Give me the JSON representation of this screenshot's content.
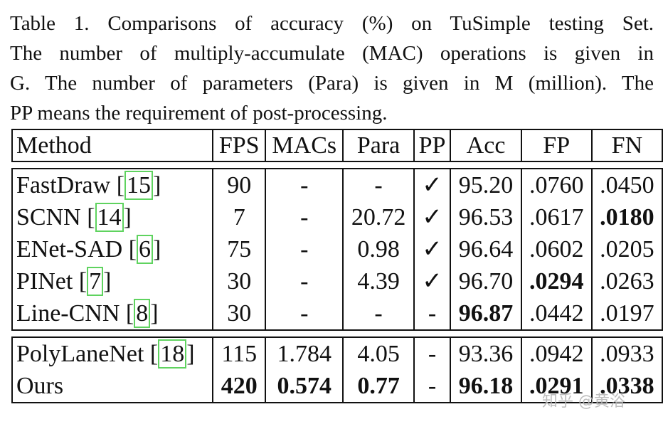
{
  "caption": {
    "lines": [
      "Table 1. Comparisons of accuracy (%) on TuSimple testing Set.",
      "The number of multiply-accumulate (MAC) operations is given in",
      "G. The number of parameters (Para) is given in M (million). The",
      "PP means the requirement of post-processing."
    ]
  },
  "table": {
    "headers": [
      "Method",
      "FPS",
      "MACs",
      "Para",
      "PP",
      "Acc",
      "FP",
      "FN"
    ],
    "group1": [
      {
        "method": "FastDraw [",
        "ref": "15",
        "close": "]",
        "fps": "90",
        "macs": "-",
        "para": "-",
        "pp": "✓",
        "acc": "95.20",
        "fp": ".0760",
        "fn": ".0450"
      },
      {
        "method": "SCNN [",
        "ref": "14",
        "close": "]",
        "fps": "7",
        "macs": "-",
        "para": "20.72",
        "pp": "✓",
        "acc": "96.53",
        "fp": ".0617",
        "fn": ".0180"
      },
      {
        "method": "ENet-SAD [",
        "ref": "6",
        "close": "]",
        "fps": "75",
        "macs": "-",
        "para": "0.98",
        "pp": "✓",
        "acc": "96.64",
        "fp": ".0602",
        "fn": ".0205"
      },
      {
        "method": "PINet [",
        "ref": "7",
        "close": "]",
        "fps": "30",
        "macs": "-",
        "para": "4.39",
        "pp": "✓",
        "acc": "96.70",
        "fp": ".0294",
        "fn": ".0263"
      },
      {
        "method": "Line-CNN [",
        "ref": "8",
        "close": "]",
        "fps": "30",
        "macs": "-",
        "para": "-",
        "pp": "-",
        "acc": "96.87",
        "fp": ".0442",
        "fn": ".0197"
      }
    ],
    "group2": [
      {
        "method": "PolyLaneNet [",
        "ref": "18",
        "close": "]",
        "fps": "115",
        "macs": "1.784",
        "para": "4.05",
        "pp": "-",
        "acc": "93.36",
        "fp": ".0942",
        "fn": ".0933"
      },
      {
        "method": "Ours",
        "fps": "420",
        "macs": "0.574",
        "para": "0.77",
        "pp": "-",
        "acc": "96.18",
        "fp": ".0291",
        "fn": ".0338"
      }
    ]
  },
  "watermark": "知乎 @黄浴"
}
